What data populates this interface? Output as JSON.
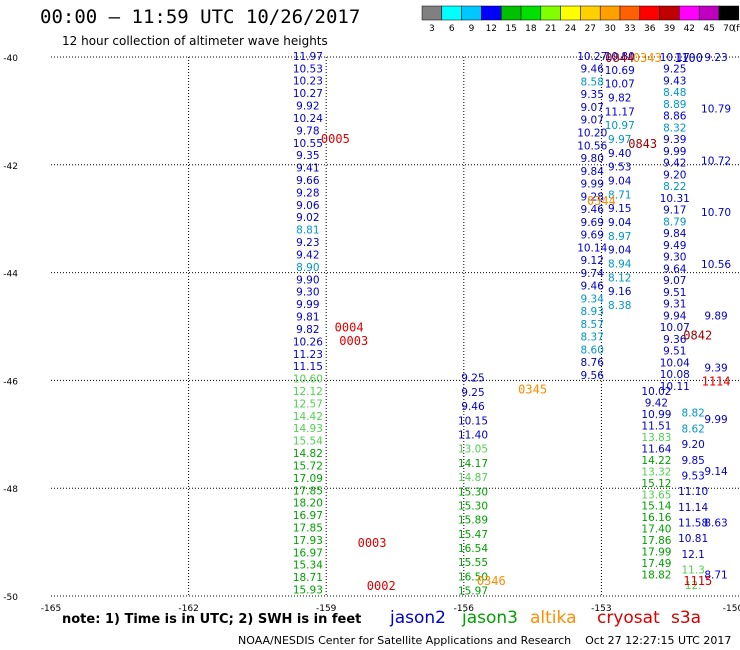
{
  "title": "00:00 — 11:59 UTC 10/26/2017",
  "subtitle": "12 hour collection of altimeter wave heights",
  "footer": "NOAA/NESDIS Center for Satellite Applications and Research    Oct 27 12:27:15 UTC 2017",
  "note": "note: 1) Time is in UTC; 2) SWH is in feet",
  "colorbar": {
    "labels": [
      "3",
      "6",
      "9",
      "12",
      "15",
      "18",
      "21",
      "24",
      "27",
      "30",
      "33",
      "36",
      "39",
      "42",
      "45",
      "70"
    ],
    "unit": "(ft)",
    "colors": [
      "#808080",
      "#00ffff",
      "#00c8ff",
      "#0000ff",
      "#00c000",
      "#00e000",
      "#80ff00",
      "#ffff00",
      "#ffd000",
      "#ffa000",
      "#ff6000",
      "#ff0000",
      "#c00000",
      "#ff00ff",
      "#c000c0",
      "#000000"
    ]
  },
  "legend": [
    {
      "name": "jason2",
      "color": "#0000cc"
    },
    {
      "name": "jason3",
      "color": "#00a000"
    },
    {
      "name": "altika",
      "color": "#ff8c00"
    },
    {
      "name": "cryosat",
      "color": "#dd0000"
    },
    {
      "name": "s3a",
      "color": "#cc0000"
    }
  ],
  "chart_data": {
    "type": "scatter",
    "xlabel": "",
    "ylabel": "",
    "xlim": [
      -165,
      -150
    ],
    "ylim": [
      -50,
      -40
    ],
    "x_ticks": [
      "-165",
      "-162",
      "-159",
      "-156",
      "-153",
      "-150"
    ],
    "y_ticks": [
      "-40",
      "-42",
      "-44",
      "-46",
      "-48",
      "-50"
    ],
    "grid": true,
    "colors": {
      "dark_blue": "#0000cc",
      "light_blue": "#0096c8",
      "light_green": "#50d050",
      "green": "#00a000",
      "red": "#dd0000",
      "dark_red": "#990000",
      "orange": "#ff8c00"
    },
    "passes": [
      {
        "x": -159.4,
        "y0": -39.98,
        "y1": -49.88,
        "color": "dark_blue",
        "split": [
          {
            "from": 0,
            "to": 26,
            "color": "dark_blue"
          },
          {
            "from": 26,
            "to": 32,
            "color": "light_green"
          },
          {
            "from": 32,
            "to": 46,
            "color": "green"
          }
        ],
        "values": [
          "11.97",
          "10.53",
          "10.23",
          "10.27",
          "9.92",
          "10.24",
          "9.78",
          "10.55",
          "9.35",
          "9.41",
          "9.66",
          "9.28",
          "9.06",
          "9.02",
          "8.81",
          "9.23",
          "9.42",
          "8.90",
          "9.90",
          "9.30",
          "9.99",
          "9.81",
          "9.82",
          "10.26",
          "11.23",
          "11.15",
          "10.60",
          "12.12",
          "12.57",
          "14.42",
          "14.93",
          "15.54",
          "14.82",
          "15.72",
          "17.09",
          "17.85",
          "18.20",
          "16.97",
          "17.85",
          "17.93",
          "16.97",
          "15.34",
          "18.71",
          "15.93"
        ],
        "color_override": {
          "14": "light_blue",
          "17": "light_blue"
        }
      },
      {
        "x": -153.2,
        "y0": -39.98,
        "y1": -45.9,
        "color": "dark_blue",
        "values": [
          "10.27",
          "9.46",
          "8.58",
          "9.35",
          "9.07",
          "9.07",
          "10.20",
          "10.56",
          "9.80",
          "9.84",
          "9.99",
          "9.28",
          "9.46",
          "9.69",
          "9.69",
          "10.14",
          "9.12",
          "9.74",
          "9.46",
          "9.34",
          "8.93",
          "8.57",
          "8.37",
          "8.60",
          "8.76",
          "9.56"
        ],
        "color_override": {
          "2": "light_blue",
          "19": "light_blue",
          "20": "light_blue",
          "21": "light_blue",
          "22": "light_blue",
          "23": "light_blue"
        }
      },
      {
        "x": -152.6,
        "y0": -39.98,
        "y1": -44.6,
        "color": "dark_blue",
        "values": [
          "10.80",
          "10.69",
          "10.07",
          "9.82",
          "11.17",
          "10.97",
          "9.97",
          "9.40",
          "9.53",
          "9.04",
          "8.71",
          "9.15",
          "9.04",
          "8.97",
          "9.04",
          "8.94",
          "8.12",
          "9.16",
          "8.38"
        ],
        "color_override": {
          "5": "light_blue",
          "6": "light_blue",
          "10": "light_blue",
          "13": "light_blue",
          "15": "light_blue",
          "16": "light_blue",
          "18": "light_blue"
        }
      },
      {
        "x": -151.4,
        "y0": -40.0,
        "y1": -46.1,
        "color": "dark_blue",
        "values": [
          "10.17",
          "9.25",
          "9.43",
          "8.48",
          "8.89",
          "8.86",
          "8.32",
          "9.39",
          "9.99",
          "9.42",
          "9.20",
          "8.22",
          "10.31",
          "9.17",
          "8.79",
          "9.84",
          "9.49",
          "9.30",
          "9.64",
          "9.07",
          "9.51",
          "9.31",
          "9.94",
          "10.07",
          "9.36",
          "9.51",
          "10.04",
          "10.08",
          "10.11"
        ],
        "color_override": {
          "3": "light_blue",
          "4": "light_blue",
          "6": "light_blue",
          "11": "light_blue",
          "14": "light_blue"
        }
      },
      {
        "x": -150.5,
        "y0": -40.0,
        "y1": -49.6,
        "color": "dark_blue",
        "values": [
          "9.23",
          "10.79",
          "10.72",
          "10.70",
          "10.56",
          "9.89",
          "9.39",
          "9.99",
          "9.14",
          "8.63",
          "8.71"
        ]
      },
      {
        "x": -155.8,
        "y0": -45.95,
        "y1": -49.9,
        "color": "dark_blue",
        "values": [
          "9.25",
          "9.25",
          "9.46",
          "10.15",
          "11.40",
          "13.05",
          "14.17",
          "14.87",
          "15.30",
          "15.30",
          "15.89",
          "15.47",
          "16.54",
          "15.55",
          "16.50",
          "15.97"
        ],
        "color_override": {
          "5": "light_green",
          "6": "green",
          "7": "light_green",
          "8": "green",
          "9": "green",
          "10": "green",
          "11": "green",
          "12": "green",
          "13": "green",
          "14": "green",
          "15": "green"
        }
      },
      {
        "x": -151.8,
        "y0": -46.2,
        "y1": -49.6,
        "color": "dark_blue",
        "values": [
          "10.02",
          "9.42",
          "10.99",
          "11.51",
          "13.83",
          "11.64",
          "14.22",
          "13.32",
          "15.12",
          "13.65",
          "15.14",
          "16.16",
          "17.40",
          "17.86",
          "17.99",
          "17.49",
          "18.82"
        ],
        "color_override": {
          "4": "light_green",
          "6": "green",
          "7": "light_green",
          "8": "green",
          "9": "light_green",
          "10": "green",
          "11": "green",
          "12": "green",
          "13": "green",
          "14": "green",
          "15": "green",
          "16": "green"
        }
      },
      {
        "x": -151.0,
        "y0": -46.6,
        "y1": -49.8,
        "color": "dark_blue",
        "values": [
          "8.82",
          "8.62",
          "9.20",
          "9.85",
          "9.53",
          "11.10",
          "11.14",
          "11.58",
          "10.81",
          "12.1",
          "11.3",
          "12."
        ],
        "color_override": {
          "0": "light_blue",
          "1": "light_blue",
          "9": "dark_blue",
          "10": "light_green",
          "11": "light_green"
        }
      }
    ],
    "time_labels": [
      {
        "text": "0005",
        "x": -158.8,
        "y": -41.5,
        "color": "red"
      },
      {
        "text": "0004",
        "x": -158.5,
        "y": -45.0,
        "color": "red"
      },
      {
        "text": "0003",
        "x": -158.4,
        "y": -45.25,
        "color": "red"
      },
      {
        "text": "0003",
        "x": -158.0,
        "y": -49.0,
        "color": "red"
      },
      {
        "text": "0002",
        "x": -157.8,
        "y": -49.8,
        "color": "red"
      },
      {
        "text": "0346",
        "x": -155.4,
        "y": -49.7,
        "color": "orange"
      },
      {
        "text": "0345",
        "x": -154.5,
        "y": -46.15,
        "color": "orange"
      },
      {
        "text": "0344",
        "x": -153.0,
        "y": -42.65,
        "color": "orange"
      },
      {
        "text": "0843",
        "x": -152.1,
        "y": -41.6,
        "color": "dark_red"
      },
      {
        "text": "0842",
        "x": -150.9,
        "y": -45.15,
        "color": "dark_red"
      },
      {
        "text": "0844",
        "x": -152.6,
        "y": -40.0,
        "color": "dark_red"
      },
      {
        "text": "0343",
        "x": -152.0,
        "y": -40.0,
        "color": "orange"
      },
      {
        "text": "1100",
        "x": -151.1,
        "y": -40.0,
        "color": "dark_blue"
      },
      {
        "text": "1114",
        "x": -150.5,
        "y": -46.0,
        "color": "red"
      },
      {
        "text": "1115",
        "x": -150.9,
        "y": -49.7,
        "color": "red"
      }
    ]
  }
}
